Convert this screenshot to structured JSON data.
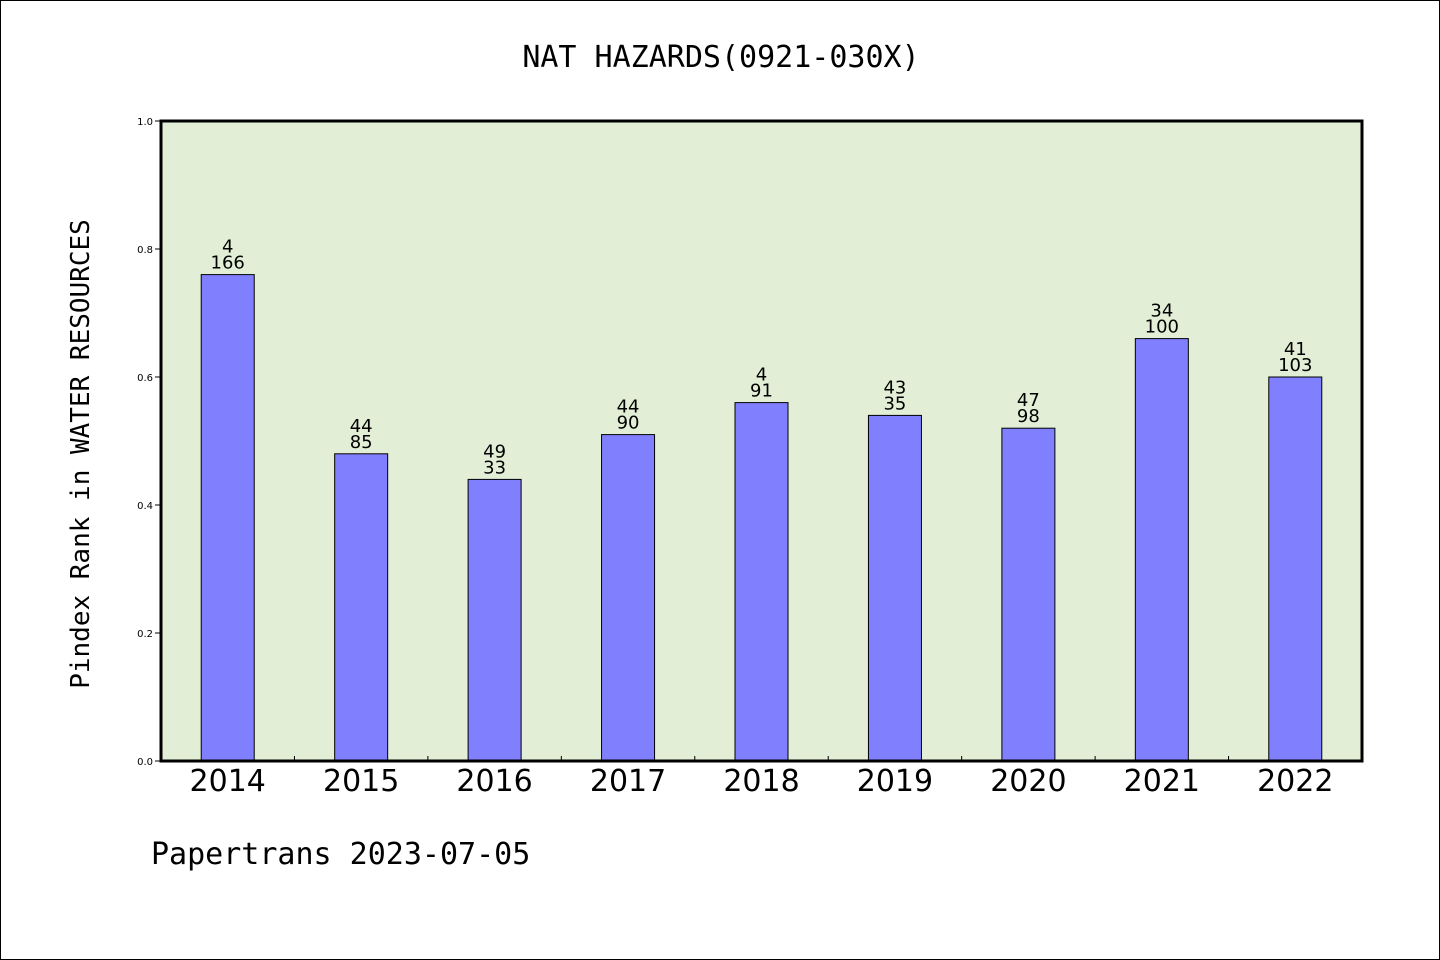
{
  "chart_data": {
    "type": "bar",
    "title": "NAT HAZARDS(0921-030X)",
    "ylabel": "Pindex Rank in WATER RESOURCES",
    "xlabel": "",
    "ylim": [
      0,
      1.0
    ],
    "yticks": [
      "0.0",
      "0.2",
      "0.4",
      "0.6",
      "0.8",
      "1.0"
    ],
    "ytick_values": [
      0.0,
      0.2,
      0.4,
      0.6,
      0.8,
      1.0
    ],
    "categories": [
      "2014",
      "2015",
      "2016",
      "2017",
      "2018",
      "2019",
      "2020",
      "2021",
      "2022"
    ],
    "values": [
      0.76,
      0.48,
      0.44,
      0.51,
      0.56,
      0.54,
      0.52,
      0.66,
      0.6
    ],
    "labels_top": [
      "4",
      "44",
      "49",
      "44",
      "4",
      "43",
      "47",
      "34",
      "41"
    ],
    "labels_bottom": [
      "166",
      "85",
      "33",
      "90",
      "91",
      "35",
      "98",
      "100",
      "103"
    ],
    "grid": false,
    "colors": {
      "bar": "#8080ff",
      "plot_background": "#e2efd6",
      "axis": "#000000"
    }
  },
  "footer": "Papertrans 2023-07-05"
}
